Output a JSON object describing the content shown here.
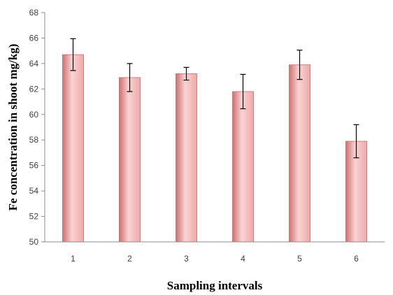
{
  "chart_data": {
    "type": "bar",
    "categories": [
      "1",
      "2",
      "3",
      "4",
      "5",
      "6"
    ],
    "values": [
      64.7,
      62.9,
      63.2,
      61.8,
      63.9,
      57.9
    ],
    "error": [
      1.25,
      1.1,
      0.5,
      1.35,
      1.15,
      1.3
    ],
    "xlabel": "Sampling intervals",
    "ylabel": "Fe concentration in shoot mg/kg)",
    "ylim": [
      50,
      68
    ],
    "yticks": [
      "50",
      "52",
      "54",
      "56",
      "58",
      "60",
      "62",
      "64",
      "66",
      "68"
    ],
    "grid": false,
    "legend": "none",
    "colors": {
      "bar_fill_light": "#f9d4d4",
      "bar_fill_mid": "#f0a8a8",
      "bar_fill_dark": "#cf7070",
      "bar_stroke": "#c56c6c",
      "axis": "#8c8c8c",
      "error_bar": "#000000"
    }
  }
}
